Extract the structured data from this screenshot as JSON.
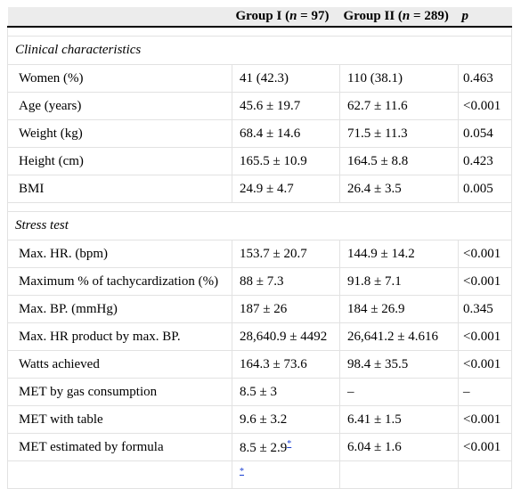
{
  "header": {
    "col2": "Group I (n = 97)",
    "col3": "Group II (n = 289)",
    "col4": "p"
  },
  "sections": [
    {
      "title": "Clinical characteristics",
      "rows": [
        [
          "Women (%)",
          "41 (42.3)",
          "110 (38.1)",
          "0.463"
        ],
        [
          "Age (years)",
          "45.6 ± 19.7",
          "62.7 ± 11.6",
          "<0.001"
        ],
        [
          "Weight (kg)",
          "68.4 ± 14.6",
          "71.5 ± 11.3",
          "0.054"
        ],
        [
          "Height (cm)",
          "165.5 ± 10.9",
          "164.5 ± 8.8",
          "0.423"
        ],
        [
          "BMI",
          "24.9 ± 4.7",
          "26.4 ± 3.5",
          "0.005"
        ]
      ]
    },
    {
      "title": "Stress test",
      "rows": [
        [
          "Max. HR. (bpm)",
          "153.7 ± 20.7",
          "144.9 ± 14.2",
          "<0.001"
        ],
        [
          "Maximum % of tachycardization (%)",
          "88 ± 7.3",
          "91.8 ± 7.1",
          "<0.001"
        ],
        [
          "Max. BP. (mmHg)",
          "187 ± 26",
          "184 ± 26.9",
          "0.345"
        ],
        [
          "Max. HR product by max. BP.",
          "28,640.9 ± 4492",
          "26,641.2 ± 4.616",
          "<0.001"
        ],
        [
          "Watts achieved",
          "164.3 ± 73.6",
          "98.4 ± 35.5",
          "<0.001"
        ],
        [
          "MET by gas consumption",
          "8.5 ± 3",
          "–",
          "–"
        ],
        [
          "MET with table",
          "9.6 ± 3.2",
          "6.41 ± 1.5",
          "<0.001"
        ],
        [
          "MET estimated by formula",
          "8.5 ± 2.9",
          "6.04 ± 1.6",
          "<0.001"
        ]
      ]
    }
  ],
  "footnote_marker": "*"
}
